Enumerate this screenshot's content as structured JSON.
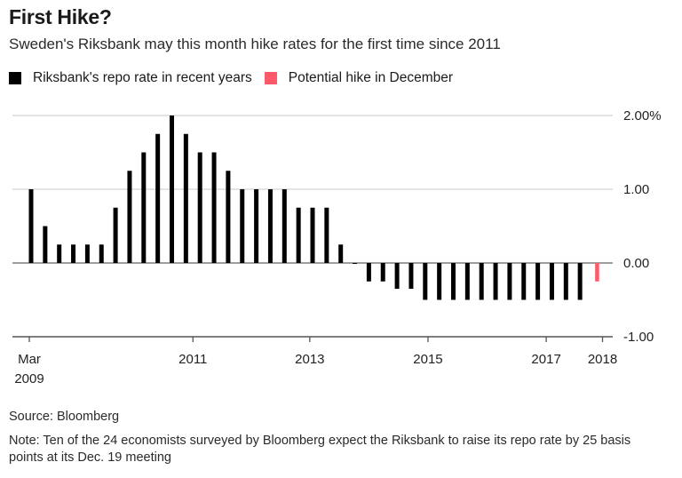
{
  "chart_data": {
    "type": "bar",
    "title": "First Hike?",
    "subtitle": "Sweden's Riksbank may this month hike rates for the first time since 2011",
    "xlabel": "",
    "ylabel": "",
    "ylim": [
      -1.0,
      2.0
    ],
    "y_ticks": [
      {
        "value": 2.0,
        "label": "2.00%"
      },
      {
        "value": 1.0,
        "label": "1.00"
      },
      {
        "value": 0.0,
        "label": "0.00"
      },
      {
        "value": -1.0,
        "label": "-1.00"
      }
    ],
    "x_ticks": [
      {
        "index": 0,
        "label": "Mar",
        "label2": "2009"
      },
      {
        "index": 11.5,
        "label": "2011",
        "label2": ""
      },
      {
        "index": 19.8,
        "label": "2013",
        "label2": ""
      },
      {
        "index": 28.2,
        "label": "2015",
        "label2": ""
      },
      {
        "index": 36.6,
        "label": "2017",
        "label2": ""
      },
      {
        "index": 40.6,
        "label": "2018",
        "label2": ""
      }
    ],
    "grid": true,
    "legend_position": "top-left",
    "series": [
      {
        "name": "Riksbank's repo rate in recent years",
        "color": "#000000",
        "values": [
          1.0,
          0.5,
          0.25,
          0.25,
          0.25,
          0.25,
          0.75,
          1.25,
          1.5,
          1.75,
          2.0,
          1.75,
          1.5,
          1.5,
          1.25,
          1.0,
          1.0,
          1.0,
          1.0,
          0.75,
          0.75,
          0.75,
          0.25,
          0.0,
          -0.25,
          -0.25,
          -0.35,
          -0.35,
          -0.5,
          -0.5,
          -0.5,
          -0.5,
          -0.5,
          -0.5,
          -0.5,
          -0.5,
          -0.5,
          -0.5,
          -0.5,
          -0.5
        ]
      },
      {
        "name": "Potential hike in December",
        "color": "#ff5a6a",
        "index": 40.2,
        "values": [
          -0.25
        ]
      }
    ]
  },
  "source": "Source: Bloomberg",
  "note": "Note: Ten of the 24 economists surveyed by Bloomberg expect the Riksbank to raise its repo rate by 25 basis points at its Dec. 19 meeting"
}
